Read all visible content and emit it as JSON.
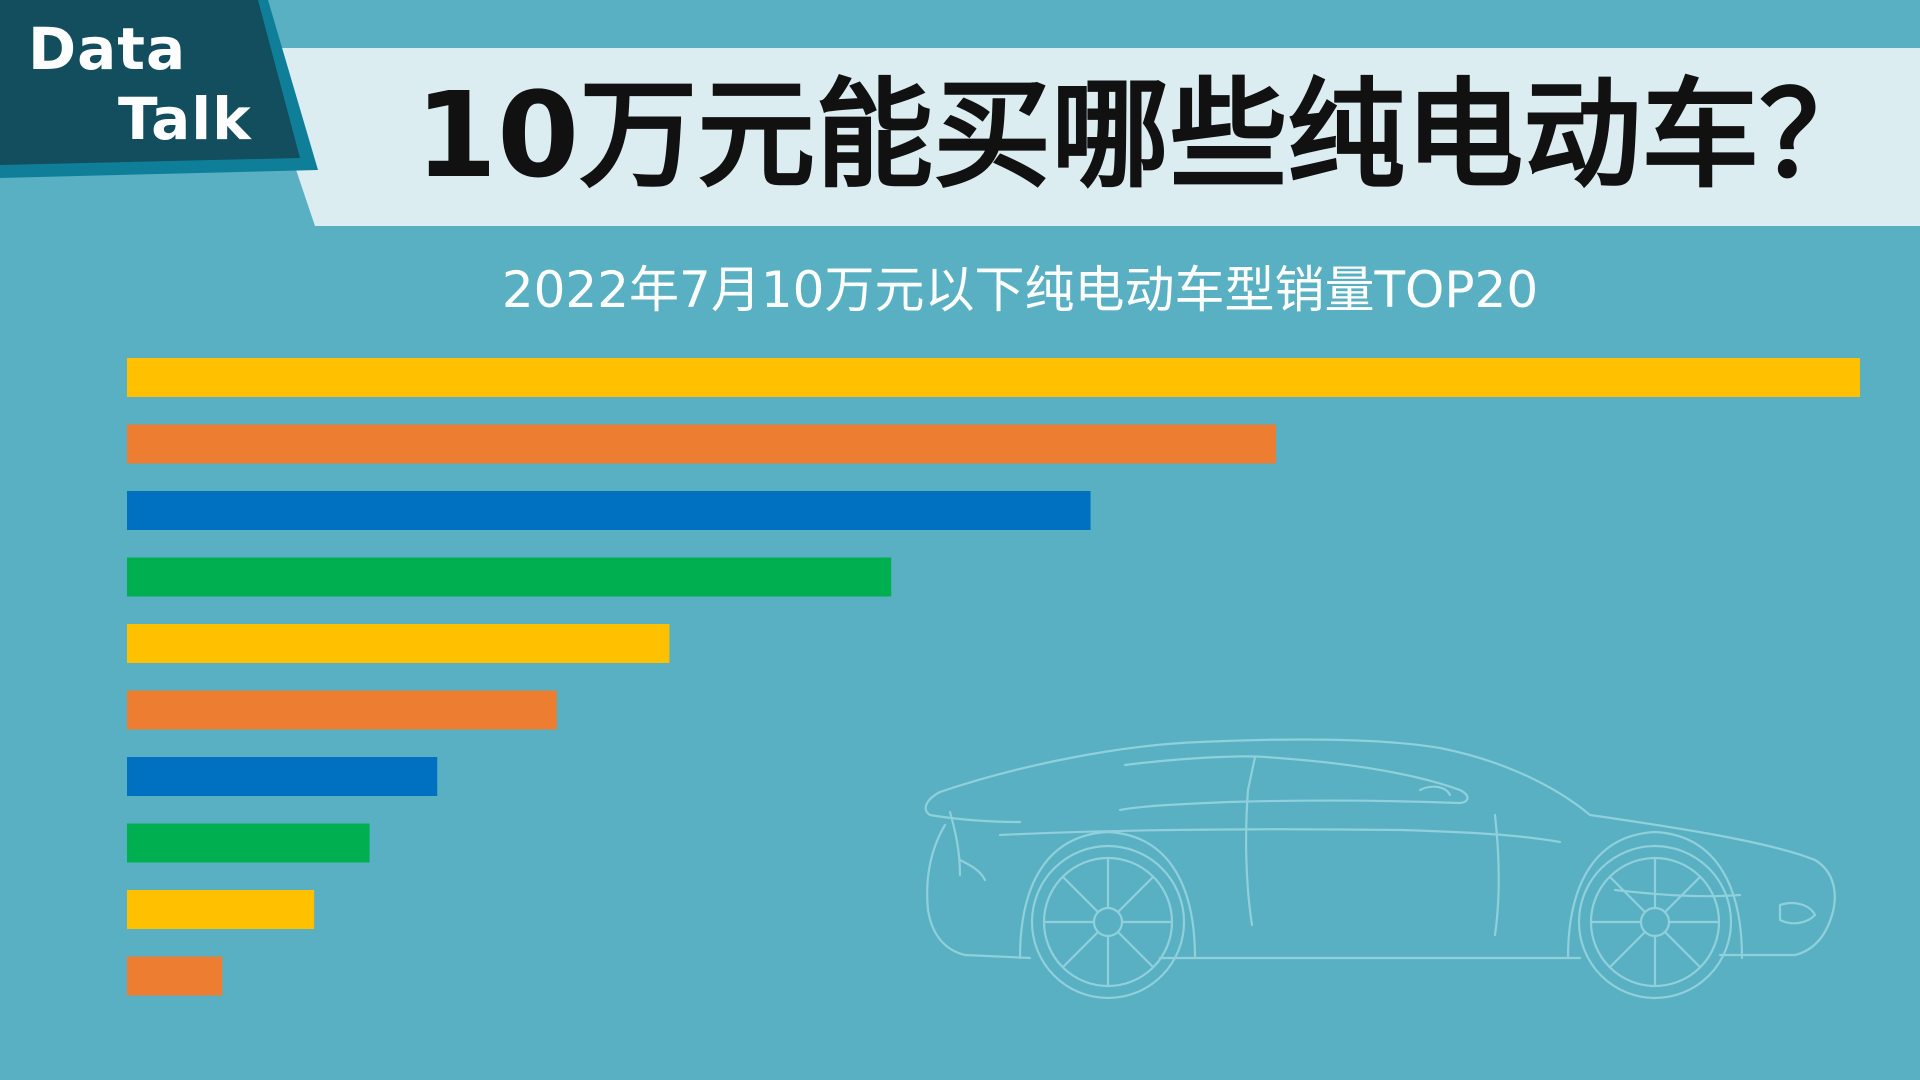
{
  "header": {
    "badge_line1": "Data",
    "badge_line2": "Talk",
    "title": "10万元能买哪些纯电动车？"
  },
  "chart_data": {
    "type": "bar",
    "orientation": "horizontal",
    "title": "2022年7月10万元以下纯电动车型销量TOP20",
    "xlabel": "",
    "ylabel": "",
    "grid": false,
    "legend": "none",
    "xlim": [
      0,
      100
    ],
    "values": [
      100,
      66.3,
      55.6,
      44.1,
      31.3,
      24.8,
      17.9,
      14.0,
      10.8,
      5.5
    ],
    "colors": [
      "#ffc000",
      "#ed7d31",
      "#0070c0",
      "#00b050",
      "#ffc000",
      "#ed7d31",
      "#0070c0",
      "#00b050",
      "#ffc000",
      "#ed7d31"
    ]
  },
  "colors": {
    "background": "#59b0c2",
    "title_band": "#dcedf1",
    "badge": "#124e5d",
    "car_outline": "#8fd0dc"
  }
}
